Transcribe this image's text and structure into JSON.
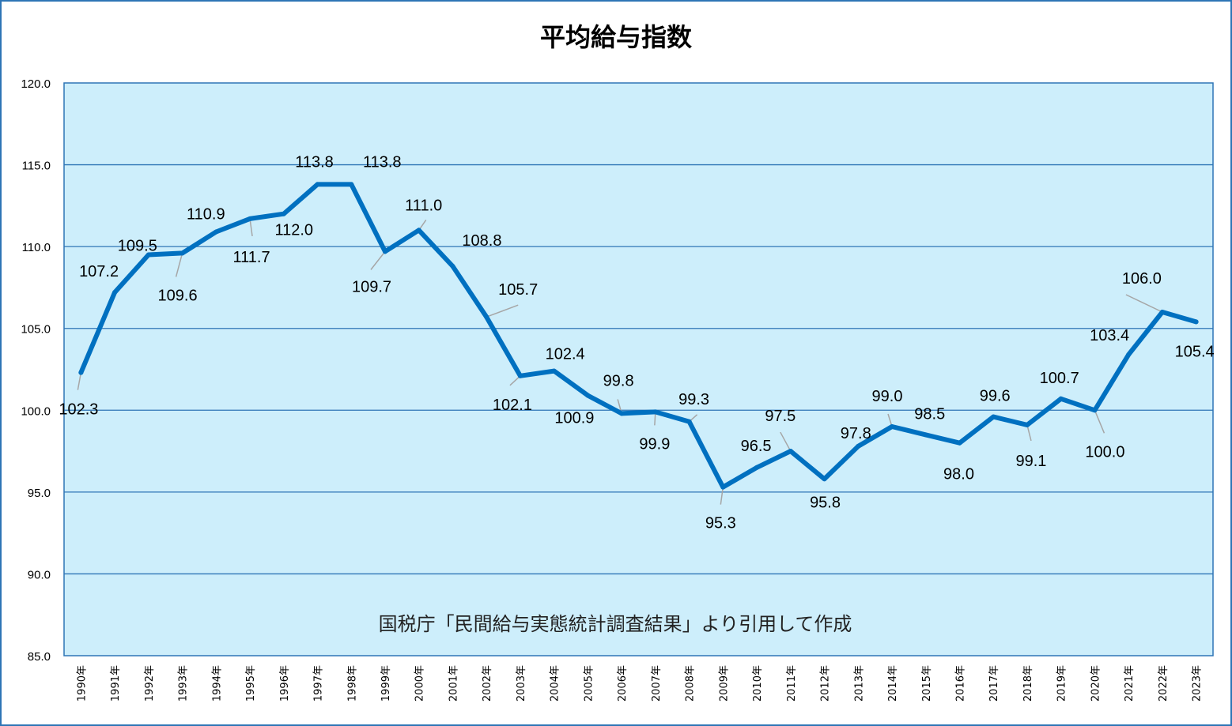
{
  "chart_data": {
    "type": "line",
    "title": "平均給与指数",
    "annotation": "国税庁「民間給与実態統計調査結果」より引用して作成",
    "categories": [
      "1990年",
      "1991年",
      "1992年",
      "1993年",
      "1994年",
      "1995年",
      "1996年",
      "1997年",
      "1998年",
      "1999年",
      "2000年",
      "2001年",
      "2002年",
      "2003年",
      "2004年",
      "2005年",
      "2006年",
      "2007年",
      "2008年",
      "2009年",
      "2010年",
      "2011年",
      "2012年",
      "2013年",
      "2014年",
      "2015年",
      "2016年",
      "2017年",
      "2018年",
      "2019年",
      "2020年",
      "2021年",
      "2022年",
      "2023年"
    ],
    "series": [
      {
        "values": [
          102.3,
          107.2,
          109.5,
          109.6,
          110.9,
          111.7,
          112.0,
          113.8,
          113.8,
          109.7,
          111.0,
          108.8,
          105.7,
          102.1,
          102.4,
          100.9,
          99.8,
          99.9,
          99.3,
          95.3,
          96.5,
          97.5,
          95.8,
          97.8,
          99.0,
          98.5,
          98.0,
          99.6,
          99.1,
          100.7,
          100.0,
          103.4,
          106.0,
          105.4
        ],
        "labels": [
          "102.3",
          "107.2",
          "109.5",
          "109.6",
          "110.9",
          "111.7",
          "112.0",
          "113.8",
          "113.8",
          "109.7",
          "111.0",
          "108.8",
          "105.7",
          "102.1",
          "102.4",
          "100.9",
          "99.8",
          "99.9",
          "99.3",
          "95.3",
          "96.5",
          "97.5",
          "95.8",
          "97.8",
          "99.0",
          "98.5",
          "98.0",
          "99.6",
          "99.1",
          "100.7",
          "100.0",
          "103.4",
          "106.0",
          "105.4"
        ],
        "color": "#0070c0"
      }
    ],
    "yticks": [
      "120.0",
      "115.0",
      "110.0",
      "105.0",
      "100.0",
      "95.0",
      "90.0",
      "85.0"
    ],
    "ylim": [
      85,
      120
    ],
    "grid": true,
    "legend": "none",
    "colors": {
      "plot_background": "#cdeefb",
      "gridline": "#2e75b6",
      "leader_line": "#a6a6a6"
    }
  }
}
